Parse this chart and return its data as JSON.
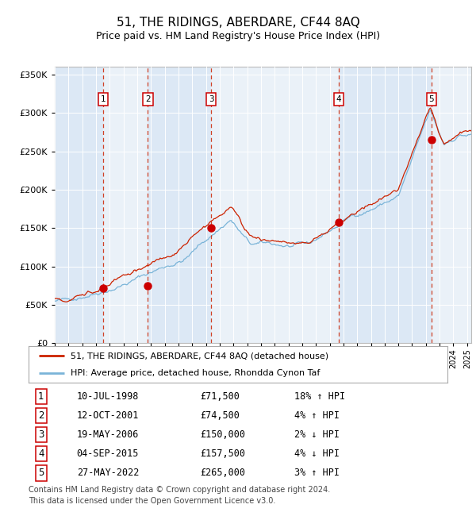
{
  "title": "51, THE RIDINGS, ABERDARE, CF44 8AQ",
  "subtitle": "Price paid vs. HM Land Registry's House Price Index (HPI)",
  "title_fontsize": 11,
  "subtitle_fontsize": 9,
  "plot_bg_color": "#e8f0f8",
  "hpi_line_color": "#7ab4d8",
  "price_line_color": "#cc2200",
  "marker_color": "#cc0000",
  "dashed_line_color": "#cc2200",
  "ylim": [
    0,
    360000
  ],
  "ylabel_ticks": [
    0,
    50000,
    100000,
    150000,
    200000,
    250000,
    300000,
    350000
  ],
  "ylabel_labels": [
    "£0",
    "£50K",
    "£100K",
    "£150K",
    "£200K",
    "£250K",
    "£300K",
    "£350K"
  ],
  "xlim_start": 1995.0,
  "xlim_end": 2025.3,
  "purchases": [
    {
      "id": 1,
      "date_str": "10-JUL-1998",
      "year": 1998.53,
      "price": 71500,
      "pct": "18%",
      "dir": "↑"
    },
    {
      "id": 2,
      "date_str": "12-OCT-2001",
      "year": 2001.78,
      "price": 74500,
      "pct": "4%",
      "dir": "↑"
    },
    {
      "id": 3,
      "date_str": "19-MAY-2006",
      "year": 2006.38,
      "price": 150000,
      "pct": "2%",
      "dir": "↓"
    },
    {
      "id": 4,
      "date_str": "04-SEP-2015",
      "year": 2015.67,
      "price": 157500,
      "pct": "4%",
      "dir": "↓"
    },
    {
      "id": 5,
      "date_str": "27-MAY-2022",
      "year": 2022.4,
      "price": 265000,
      "pct": "3%",
      "dir": "↑"
    }
  ],
  "legend_label_price": "51, THE RIDINGS, ABERDARE, CF44 8AQ (detached house)",
  "legend_label_hpi": "HPI: Average price, detached house, Rhondda Cynon Taf",
  "footer": "Contains HM Land Registry data © Crown copyright and database right 2024.\nThis data is licensed under the Open Government Licence v3.0."
}
